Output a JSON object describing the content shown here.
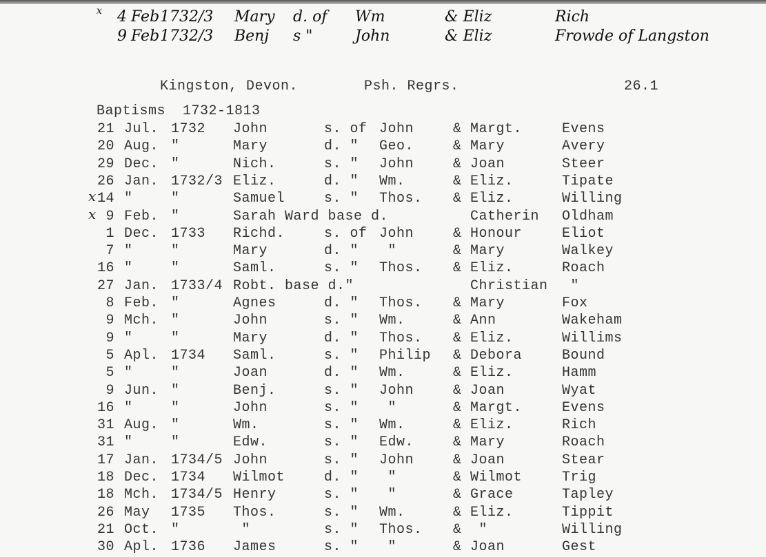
{
  "handwritten": [
    {
      "mark": "x",
      "day": "4",
      "month": "Feb",
      "year": "1732/3",
      "name": "Mary",
      "rel": "d. of",
      "father": "Wm",
      "mother": "& Eliz",
      "surname": "Rich"
    },
    {
      "mark": "",
      "day": "9",
      "month": "Feb",
      "year": "1732/3",
      "name": "Benj",
      "rel": "s \"",
      "father": "John",
      "mother": "& Eliz",
      "surname": "Frowde of Langston"
    }
  ],
  "header": {
    "place": "Kingston, Devon.",
    "register": "Psh. Regrs.",
    "page_number": "26.1"
  },
  "section_title": "Baptisms  1732-1813",
  "rows": [
    {
      "day": "21",
      "month": "Jul.",
      "year": "1732",
      "name": "John",
      "rel": "s. of",
      "father": "John",
      "mother": "& Margt.",
      "surname": "Evens",
      "mark": ""
    },
    {
      "day": "20",
      "month": "Aug.",
      "year": "\"",
      "name": "Mary",
      "rel": "d. \"",
      "father": "Geo.",
      "mother": "& Mary",
      "surname": "Avery",
      "mark": ""
    },
    {
      "day": "29",
      "month": "Dec.",
      "year": "\"",
      "name": "Nich.",
      "rel": "s. \"",
      "father": "John",
      "mother": "& Joan",
      "surname": "Steer",
      "mark": ""
    },
    {
      "day": "26",
      "month": "Jan.",
      "year": "1732/3",
      "name": "Eliz.",
      "rel": "d. \"",
      "father": "Wm.",
      "mother": "& Eliz.",
      "surname": "Tipate",
      "mark": ""
    },
    {
      "day": "14",
      "month": "\"",
      "year": "\"",
      "name": "Samuel",
      "rel": "s. \"",
      "father": "Thos.",
      "mother": "& Eliz.",
      "surname": "Willing",
      "mark": "x"
    },
    {
      "day": "9",
      "month": "Feb.",
      "year": "\"",
      "name": "Sarah Ward base d.",
      "rel": "",
      "father": "",
      "mother": "  Catherin",
      "surname": "Oldham",
      "mark": "x"
    },
    {
      "day": "1",
      "month": "Dec.",
      "year": "1733",
      "name": "Richd.",
      "rel": "s. of",
      "father": "John",
      "mother": "& Honour",
      "surname": "Eliot",
      "mark": ""
    },
    {
      "day": "7",
      "month": "\"",
      "year": "\"",
      "name": "Mary",
      "rel": "d. \"",
      "father": " \"",
      "mother": "& Mary",
      "surname": "Walkey",
      "mark": ""
    },
    {
      "day": "16",
      "month": "\"",
      "year": "\"",
      "name": "Saml.",
      "rel": "s. \"",
      "father": "Thos.",
      "mother": "& Eliz.",
      "surname": "Roach",
      "mark": ""
    },
    {
      "day": "27",
      "month": "Jan.",
      "year": "1733/4",
      "name": "Robt. base d.\"",
      "rel": "",
      "father": "",
      "mother": "  Christian",
      "surname": " \"",
      "mark": ""
    },
    {
      "day": "8",
      "month": "Feb.",
      "year": "\"",
      "name": "Agnes",
      "rel": "d. \"",
      "father": "Thos.",
      "mother": "& Mary",
      "surname": "Fox",
      "mark": ""
    },
    {
      "day": "9",
      "month": "Mch.",
      "year": "\"",
      "name": "John",
      "rel": "s. \"",
      "father": "Wm.",
      "mother": "& Ann",
      "surname": "Wakeham",
      "mark": ""
    },
    {
      "day": "9",
      "month": "\"",
      "year": "\"",
      "name": "Mary",
      "rel": "d. \"",
      "father": "Thos.",
      "mother": "& Eliz.",
      "surname": "Willims",
      "mark": ""
    },
    {
      "day": "5",
      "month": "Apl.",
      "year": "1734",
      "name": "Saml.",
      "rel": "s. \"",
      "father": "Philip",
      "mother": "& Debora",
      "surname": "Bound",
      "mark": ""
    },
    {
      "day": "5",
      "month": "\"",
      "year": "\"",
      "name": "Joan",
      "rel": "d. \"",
      "father": "Wm.",
      "mother": "& Eliz.",
      "surname": "Hamm",
      "mark": ""
    },
    {
      "day": "9",
      "month": "Jun.",
      "year": "\"",
      "name": "Benj.",
      "rel": "s. \"",
      "father": "John",
      "mother": "& Joan",
      "surname": "Wyat",
      "mark": ""
    },
    {
      "day": "16",
      "month": "\"",
      "year": "\"",
      "name": "John",
      "rel": "s. \"",
      "father": " \"",
      "mother": "& Margt.",
      "surname": "Evens",
      "mark": ""
    },
    {
      "day": "31",
      "month": "Aug.",
      "year": "\"",
      "name": "Wm.",
      "rel": "s. \"",
      "father": "Wm.",
      "mother": "& Eliz.",
      "surname": "Rich",
      "mark": ""
    },
    {
      "day": "31",
      "month": "\"",
      "year": "\"",
      "name": "Edw.",
      "rel": "s. \"",
      "father": "Edw.",
      "mother": "& Mary",
      "surname": "Roach",
      "mark": ""
    },
    {
      "day": "17",
      "month": "Jan.",
      "year": "1734/5",
      "name": "John",
      "rel": "s. \"",
      "father": "John",
      "mother": "& Joan",
      "surname": "Stear",
      "mark": ""
    },
    {
      "day": "18",
      "month": "Dec.",
      "year": "1734",
      "name": "Wilmot",
      "rel": "d. \"",
      "father": " \"",
      "mother": "& Wilmot",
      "surname": "Trig",
      "mark": ""
    },
    {
      "day": "18",
      "month": "Mch.",
      "year": "1734/5",
      "name": "Henry",
      "rel": "s. \"",
      "father": " \"",
      "mother": "& Grace",
      "surname": "Tapley",
      "mark": ""
    },
    {
      "day": "26",
      "month": "May",
      "year": "1735",
      "name": "Thos.",
      "rel": "s. \"",
      "father": "Wm.",
      "mother": "& Eliz.",
      "surname": "Tippit",
      "mark": ""
    },
    {
      "day": "21",
      "month": "Oct.",
      "year": "\"",
      "name": " \"",
      "rel": "s. \"",
      "father": "Thos.",
      "mother": "&  \"",
      "surname": "Willing",
      "mark": ""
    },
    {
      "day": "30",
      "month": "Apl.",
      "year": "1736",
      "name": "James",
      "rel": "s. \"",
      "father": " \"",
      "mother": "& Joan",
      "surname": "Gest",
      "mark": ""
    }
  ]
}
